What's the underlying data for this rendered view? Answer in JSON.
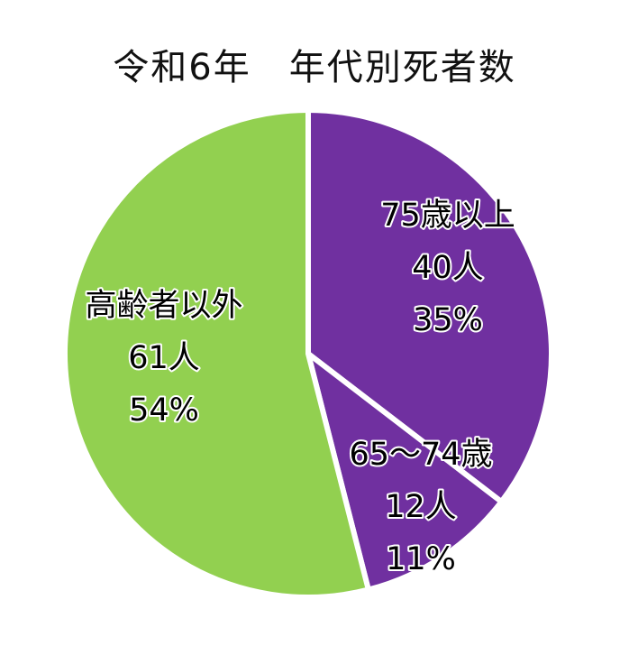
{
  "chart_data": {
    "type": "pie",
    "title": "令和6年　年代別死者数",
    "categories": [
      "75歳以上",
      "65～74歳",
      "高齢者以外"
    ],
    "values": [
      40,
      12,
      61
    ],
    "percent_labels": [
      "35%",
      "11%",
      "54%"
    ],
    "count_labels": [
      "40人",
      "12人",
      "61人"
    ],
    "colors": [
      "#7030A0",
      "#7030A0",
      "#92D050"
    ],
    "start": "12 o'clock, clockwise"
  }
}
